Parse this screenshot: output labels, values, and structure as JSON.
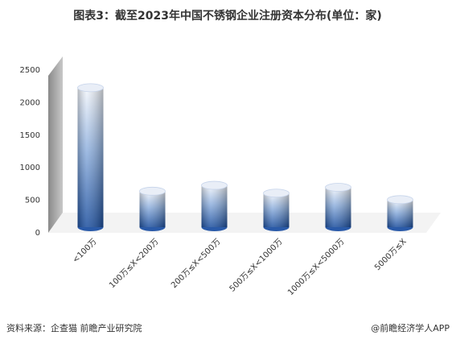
{
  "chart_data": {
    "type": "bar3d",
    "title": "图表3：截至2023年中国不锈钢企业注册资本分布(单位：家)",
    "categories": [
      "<100万",
      "100万≤X<200万",
      "200万≤X<500万",
      "500万≤X<1000万",
      "1000万≤X<5000万",
      "5000万≤X"
    ],
    "values": [
      2180,
      590,
      680,
      560,
      650,
      460
    ],
    "color": "#2a5aa8",
    "ylim": [
      0,
      2500
    ],
    "yticks": [
      0,
      500,
      1000,
      1500,
      2000,
      2500
    ],
    "source": "资料来源：企查猫 前瞻产业研究院",
    "brand": "@前瞻经济学人APP"
  }
}
